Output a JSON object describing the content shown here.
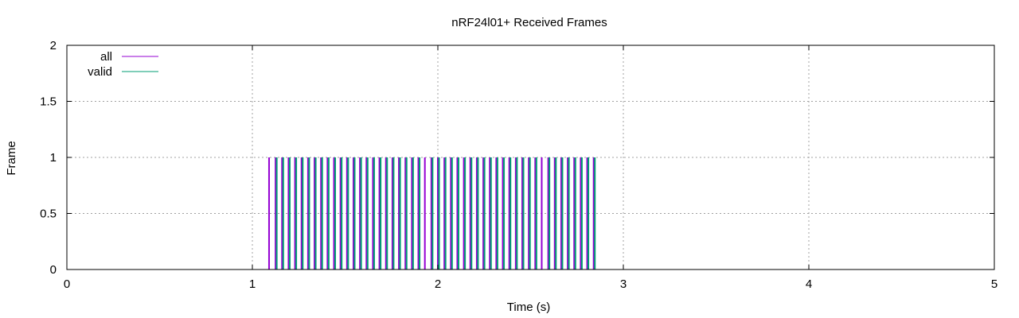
{
  "chart_data": {
    "type": "impulse",
    "title": "nRF24l01+ Received Frames",
    "xlabel": "Time (s)",
    "ylabel": "Frame",
    "xlim": [
      0,
      5
    ],
    "ylim": [
      0,
      2
    ],
    "x_ticks": [
      0,
      1,
      2,
      3,
      4,
      5
    ],
    "y_ticks": [
      0,
      0.5,
      1,
      1.5,
      2
    ],
    "y_tick_labels": [
      "0",
      "0.5",
      "1",
      "1.5",
      "2"
    ],
    "x_tick_labels": [
      "0",
      "1",
      "2",
      "3",
      "4",
      "5"
    ],
    "grid": true,
    "legend_position": "top-left",
    "series": [
      {
        "name": "all",
        "color": "#9400d3",
        "x": [
          1.09,
          1.125,
          1.16,
          1.195,
          1.23,
          1.265,
          1.3,
          1.335,
          1.37,
          1.405,
          1.44,
          1.475,
          1.51,
          1.545,
          1.58,
          1.615,
          1.65,
          1.685,
          1.72,
          1.755,
          1.79,
          1.825,
          1.86,
          1.895,
          1.93,
          1.965,
          2.0,
          2.035,
          2.07,
          2.105,
          2.14,
          2.175,
          2.21,
          2.245,
          2.28,
          2.315,
          2.35,
          2.385,
          2.42,
          2.455,
          2.49,
          2.525,
          2.56,
          2.595,
          2.63,
          2.665,
          2.7,
          2.735,
          2.77,
          2.805,
          2.84
        ],
        "y": 1
      },
      {
        "name": "valid",
        "color": "#009e73",
        "x": [
          1.125,
          1.16,
          1.195,
          1.23,
          1.265,
          1.3,
          1.335,
          1.37,
          1.405,
          1.44,
          1.475,
          1.51,
          1.545,
          1.58,
          1.615,
          1.65,
          1.685,
          1.72,
          1.755,
          1.79,
          1.825,
          1.86,
          1.895,
          1.965,
          2.0,
          2.035,
          2.07,
          2.105,
          2.14,
          2.175,
          2.21,
          2.245,
          2.28,
          2.315,
          2.35,
          2.385,
          2.42,
          2.455,
          2.49,
          2.525,
          2.595,
          2.63,
          2.665,
          2.7,
          2.735,
          2.77,
          2.805,
          2.84
        ],
        "y": 1
      }
    ]
  }
}
